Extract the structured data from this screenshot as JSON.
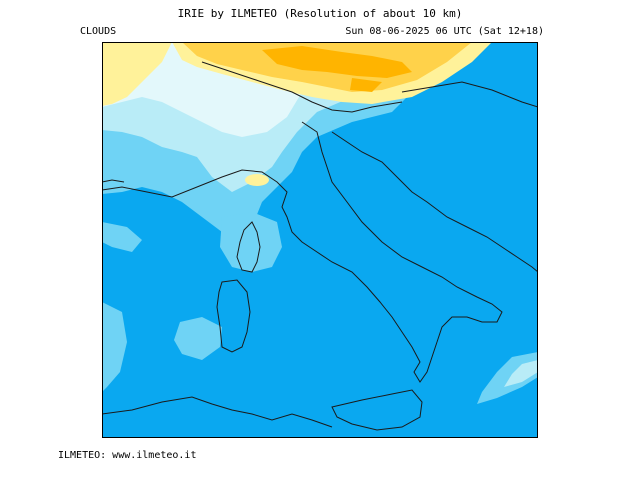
{
  "header": {
    "title": "IRIE by ILMETEO (Resolution of about 10 km)",
    "layer": "CLOUDS",
    "timestamp": "Sun 08-06-2025 06 UTC (Sat 12+18)"
  },
  "footer": {
    "credit": "ILMETEO: www.ilmeteo.it"
  },
  "map": {
    "region": "Italy and central Mediterranean",
    "variable": "cloud cover",
    "colors": {
      "clear_sea": "#0aa8f0",
      "low_clouds": "#6fd3f5",
      "mid_clouds": "#b9ecf7",
      "thin_clouds": "#e3f8fb",
      "high_clouds_light": "#fff29a",
      "high_clouds": "#ffd24a",
      "high_clouds_dense": "#ffb400",
      "coastline": "#1a1a1a",
      "frame": "#000000"
    }
  }
}
